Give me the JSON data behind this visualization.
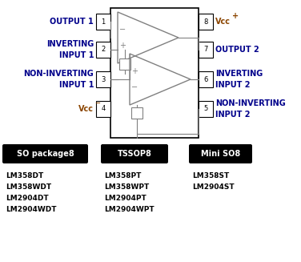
{
  "bg_color": "#ffffff",
  "pin_color": "#8B4500",
  "label_color": "#00008B",
  "packages": [
    {
      "label": "SO package8",
      "parts": [
        "LM358DT",
        "LM358WDT",
        "LM2904DT",
        "LM2904WDT"
      ]
    },
    {
      "label": "TSSOP8",
      "parts": [
        "LM358PT",
        "LM358WPT",
        "LM2904PT",
        "LM2904WPT"
      ]
    },
    {
      "label": "Mini SO8",
      "parts": [
        "LM358ST",
        "LM2904ST"
      ]
    }
  ]
}
